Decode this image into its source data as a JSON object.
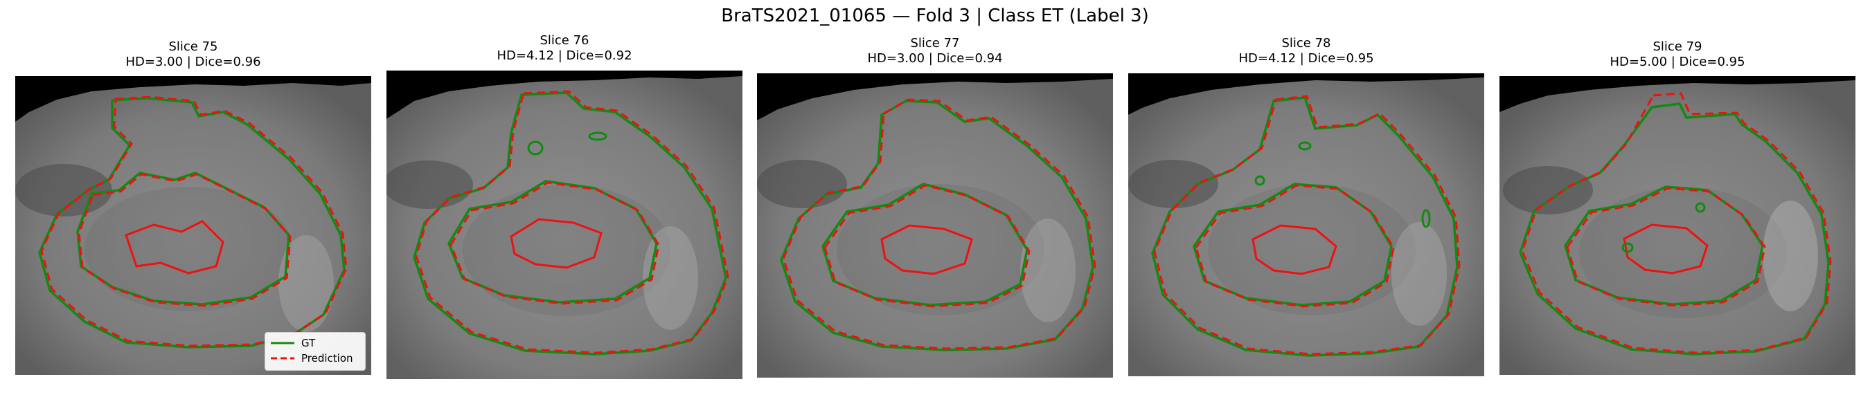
{
  "figure": {
    "title": "BraTS2021_01065 — Fold 3 | Class ET (Label 3)"
  },
  "colors": {
    "gt": "#128a12",
    "prediction": "#ee1111",
    "background": "#000000"
  },
  "legend": {
    "gt_label": "GT",
    "prediction_label": "Prediction"
  },
  "panels": [
    {
      "slice": "Slice 75",
      "metrics": "HD=3.00 | Dice=0.96"
    },
    {
      "slice": "Slice 76",
      "metrics": "HD=4.12 | Dice=0.92"
    },
    {
      "slice": "Slice 77",
      "metrics": "HD=3.00 | Dice=0.94"
    },
    {
      "slice": "Slice 78",
      "metrics": "HD=4.12 | Dice=0.95"
    },
    {
      "slice": "Slice 79",
      "metrics": "HD=5.00 | Dice=0.95"
    }
  ]
}
